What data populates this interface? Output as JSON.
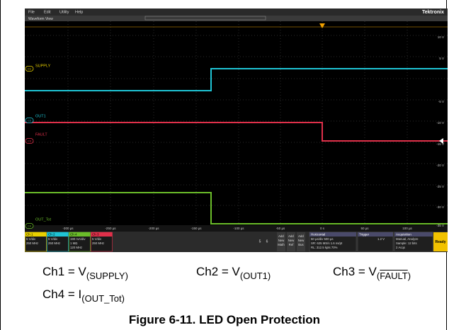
{
  "menu": [
    "File",
    "Edit",
    "Utility",
    "Help"
  ],
  "brand": "Tektronix",
  "view_title": "Waveform View",
  "channel_markers": [
    "C1",
    "C2",
    "C3",
    "C4"
  ],
  "channel_labels": [
    "SUPPLY",
    "OUT1",
    "FAULT",
    "OUT_Tot"
  ],
  "y_axis_labels": [
    "10 V",
    "5 V",
    "-5 V",
    "-10 V",
    "-15 V",
    "-20 V",
    "-25 V",
    "-30 V",
    "-35 V"
  ],
  "x_axis_labels": [
    "-300 µs",
    "-250 µs",
    "-200 µs",
    "-150 µs",
    "-100 µs",
    "-50 µs",
    "0 s",
    "50 µs",
    "100 µs"
  ],
  "status": {
    "channels": [
      {
        "name": "Ch 1",
        "color": "#e8d000",
        "lines": [
          "5 V/div",
          "250 MHz"
        ]
      },
      {
        "name": "Ch 2",
        "color": "#1fc4d4",
        "lines": [
          "5 V/div",
          "250 MHz"
        ]
      },
      {
        "name": "Ch 4",
        "color": "#6bbd2a",
        "lines": [
          "190 mA/div",
          "1 MΩ",
          "120 MHz"
        ]
      },
      {
        "name": "Ch 3",
        "color": "#e0304a",
        "lines": [
          "5 V/div",
          "250 MHz"
        ]
      }
    ],
    "buttons": [
      "5",
      "6"
    ],
    "add_buttons": [
      [
        "Add",
        "New",
        "Math"
      ],
      [
        "Add",
        "New",
        "Ref"
      ],
      [
        "Add",
        "New",
        "Bus"
      ]
    ],
    "horizontal": {
      "title": "Horizontal",
      "lines": [
        "50 µs/div    500 µs",
        "SR: 625 MS/s   1.6 ns/pt",
        "RL: 312.5 kpts   70%"
      ]
    },
    "trigger": {
      "title": "Trigger",
      "lines": [
        "1.2 V"
      ]
    },
    "acquisition": {
      "title": "Acquisition",
      "lines": [
        "Manual,   Analyze",
        "Sample: 12 bits",
        "2 Acqs"
      ]
    },
    "ready": "Ready"
  },
  "captions": [
    {
      "prefix": "Ch1 = V",
      "sub": "(SUPPLY)"
    },
    {
      "prefix": "Ch2 = V",
      "sub": "(OUT1)"
    },
    {
      "prefix": "Ch3 = V",
      "sub_open": "(",
      "sub": "FAULT",
      "sub_close": ")"
    },
    {
      "prefix": "Ch4 = I",
      "sub": "(OUT_Tot)"
    }
  ],
  "figure_title": "Figure 6-11. LED Open Protection"
}
